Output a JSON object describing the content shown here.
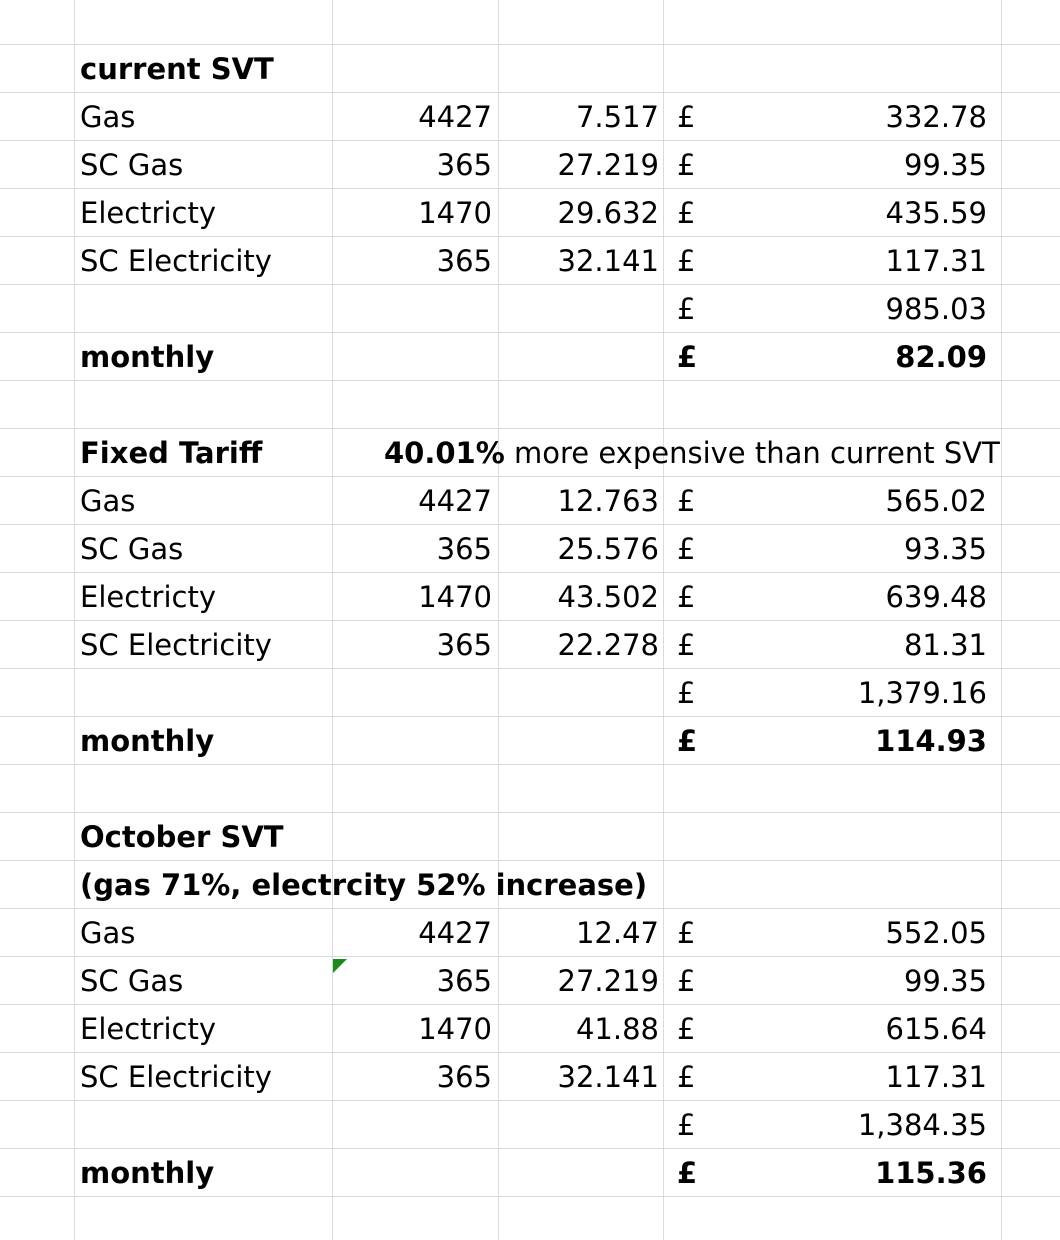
{
  "sections": [
    {
      "title": "current SVT",
      "rows": [
        {
          "label": "Gas",
          "qty": "4427",
          "rate": "7.517",
          "cur": "£",
          "amount": "332.78"
        },
        {
          "label": "SC Gas",
          "qty": "365",
          "rate": "27.219",
          "cur": "£",
          "amount": "99.35"
        },
        {
          "label": "Electricty",
          "qty": "1470",
          "rate": "29.632",
          "cur": "£",
          "amount": "435.59"
        },
        {
          "label": "SC Electricity",
          "qty": "365",
          "rate": "32.141",
          "cur": "£",
          "amount": "117.31"
        }
      ],
      "total": {
        "cur": "£",
        "amount": "985.03"
      },
      "monthly": {
        "label": "monthly",
        "cur": "£",
        "amount": "82.09"
      }
    },
    {
      "title": "Fixed Tariff",
      "note_pct": "40.01%",
      "note_text": "more expensive than current SVT",
      "rows": [
        {
          "label": "Gas",
          "qty": "4427",
          "rate": "12.763",
          "cur": "£",
          "amount": "565.02"
        },
        {
          "label": "SC Gas",
          "qty": "365",
          "rate": "25.576",
          "cur": "£",
          "amount": "93.35"
        },
        {
          "label": "Electricty",
          "qty": "1470",
          "rate": "43.502",
          "cur": "£",
          "amount": "639.48"
        },
        {
          "label": "SC Electricity",
          "qty": "365",
          "rate": "22.278",
          "cur": "£",
          "amount": "81.31"
        }
      ],
      "total": {
        "cur": "£",
        "amount": "1,379.16"
      },
      "monthly": {
        "label": "monthly",
        "cur": "£",
        "amount": "114.93"
      }
    },
    {
      "title": "October SVT",
      "subtitle": "(gas 71%, electrcity 52% increase)",
      "rows": [
        {
          "label": "Gas",
          "qty": "4427",
          "rate": "12.47",
          "cur": "£",
          "amount": "552.05"
        },
        {
          "label": "SC Gas",
          "qty": "365",
          "rate": "27.219",
          "cur": "£",
          "amount": "99.35"
        },
        {
          "label": "Electricty",
          "qty": "1470",
          "rate": "41.88",
          "cur": "£",
          "amount": "615.64"
        },
        {
          "label": "SC Electricity",
          "qty": "365",
          "rate": "32.141",
          "cur": "£",
          "amount": "117.31"
        }
      ],
      "total": {
        "cur": "£",
        "amount": "1,384.35"
      },
      "monthly": {
        "label": "monthly",
        "cur": "£",
        "amount": "115.36"
      }
    }
  ],
  "colors": {
    "gridline": "#dadada",
    "comment_flag": "#1a8a1a"
  }
}
